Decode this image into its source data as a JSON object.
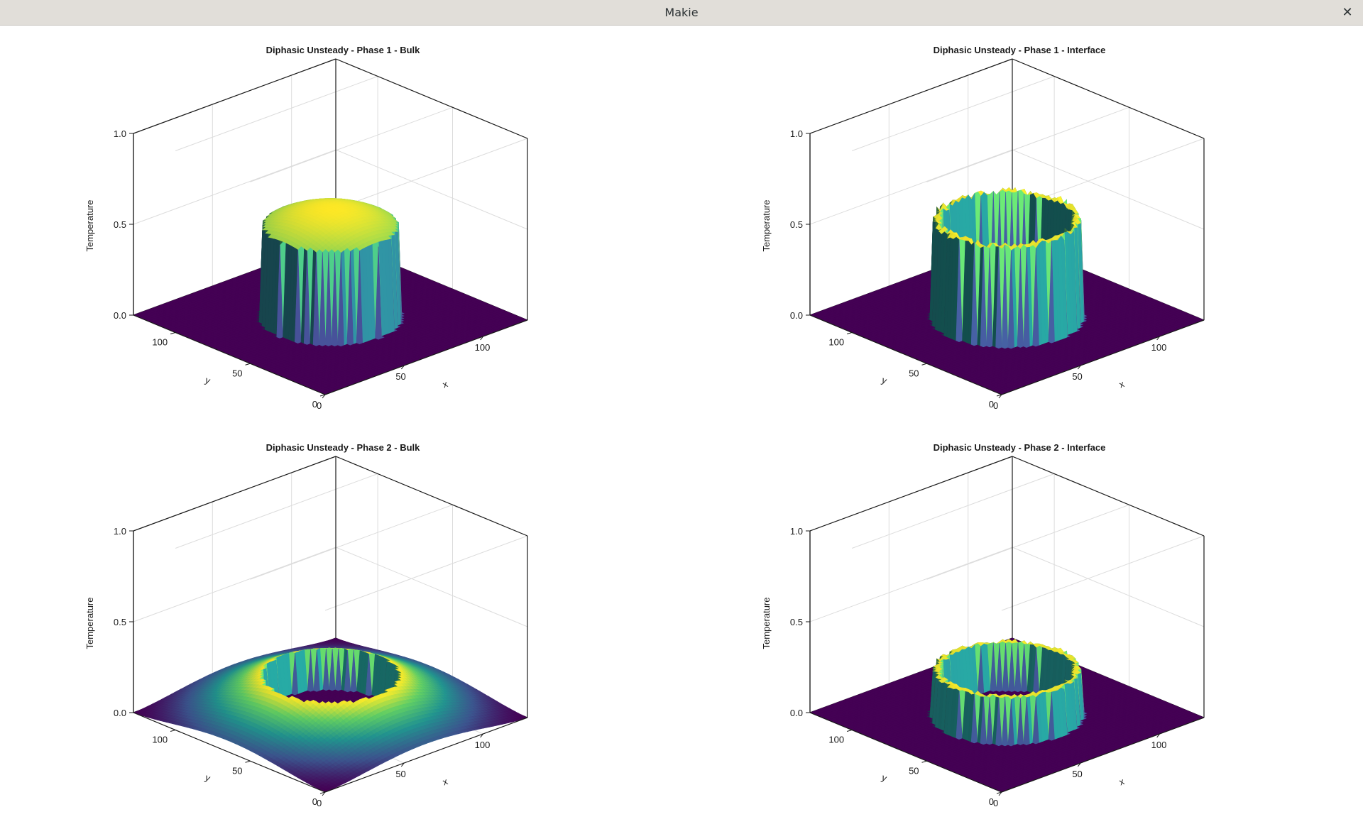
{
  "window": {
    "title": "Makie",
    "close_symbol": "✕",
    "close_icon": "close-icon"
  },
  "colors": {
    "background": "#ffffff",
    "axis_line": "#1a1a1a",
    "grid": "#dcdcdc",
    "text": "#1a1a1a",
    "colormap": [
      "#440154",
      "#3b528b",
      "#21918c",
      "#5ec962",
      "#fde725"
    ]
  },
  "chart_data": [
    {
      "type": "surface",
      "title": "Diphasic Unsteady - Phase 1 - Bulk",
      "xlabel": "x",
      "ylabel": "y",
      "zlabel": "Temperature",
      "xticks": [
        0,
        50,
        100
      ],
      "yticks": [
        0,
        50,
        100
      ],
      "zticks": [
        "0.0",
        "0.5",
        "1.0"
      ],
      "xlim": [
        0,
        128
      ],
      "ylim": [
        0,
        128
      ],
      "zlim": [
        0,
        1
      ],
      "colormap": "viridis",
      "grid": true,
      "field": {
        "kind": "bulk_inside",
        "center": [
          64,
          64
        ],
        "radius": 32,
        "edge_value": 0.5,
        "center_value": 0.6,
        "outside_value": 0.0
      }
    },
    {
      "type": "surface",
      "title": "Diphasic Unsteady - Phase 1 - Interface",
      "xlabel": "x",
      "ylabel": "y",
      "zlabel": "Temperature",
      "xticks": [
        0,
        50,
        100
      ],
      "yticks": [
        0,
        50,
        100
      ],
      "zticks": [
        "0.0",
        "0.5",
        "1.0"
      ],
      "xlim": [
        0,
        128
      ],
      "ylim": [
        0,
        128
      ],
      "zlim": [
        0,
        1
      ],
      "colormap": "viridis",
      "grid": true,
      "field": {
        "kind": "ring",
        "center": [
          64,
          64
        ],
        "radius": 32,
        "ring_value": 0.56,
        "inside_value": 0.0,
        "outside_value": 0.0
      }
    },
    {
      "type": "surface",
      "title": "Diphasic Unsteady - Phase 2 - Bulk",
      "xlabel": "x",
      "ylabel": "y",
      "zlabel": "Temperature",
      "xticks": [
        0,
        50,
        100
      ],
      "yticks": [
        0,
        50,
        100
      ],
      "zticks": [
        "0.0",
        "0.5",
        "1.0"
      ],
      "xlim": [
        0,
        128
      ],
      "ylim": [
        0,
        128
      ],
      "zlim": [
        0,
        1
      ],
      "colormap": "viridis",
      "grid": true,
      "field": {
        "kind": "bulk_outside",
        "center": [
          64,
          64
        ],
        "radius": 32,
        "edge_value": 0.22,
        "far_value": 0.0,
        "inside_value": 0.0
      }
    },
    {
      "type": "surface",
      "title": "Diphasic Unsteady - Phase 2 - Interface",
      "xlabel": "x",
      "ylabel": "y",
      "zlabel": "Temperature",
      "xticks": [
        0,
        50,
        100
      ],
      "yticks": [
        0,
        50,
        100
      ],
      "zticks": [
        "0.0",
        "0.5",
        "1.0"
      ],
      "xlim": [
        0,
        128
      ],
      "ylim": [
        0,
        128
      ],
      "zlim": [
        0,
        1
      ],
      "colormap": "viridis",
      "grid": true,
      "field": {
        "kind": "ring",
        "center": [
          64,
          64
        ],
        "radius": 32,
        "ring_value": 0.26,
        "inside_value": 0.0,
        "outside_value": 0.0
      }
    }
  ]
}
